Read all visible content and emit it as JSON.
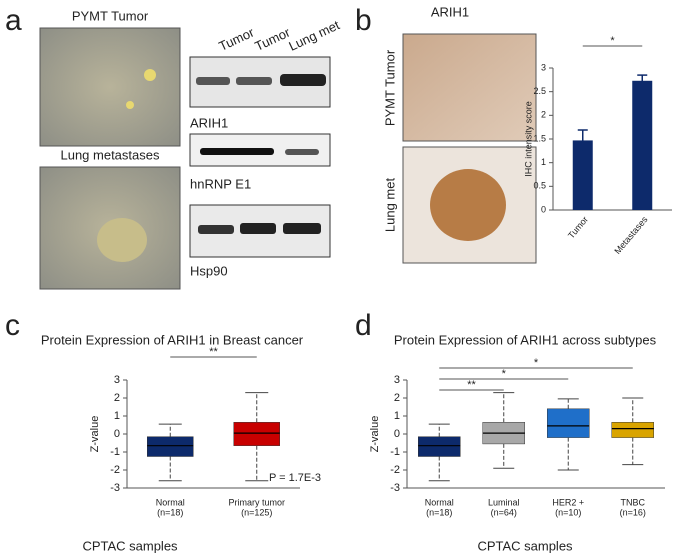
{
  "panel_labels": [
    "a",
    "b",
    "c",
    "d"
  ],
  "panel_a": {
    "image_labels": [
      "PYMT Tumor",
      "Lung metastases"
    ],
    "blot_lanes": [
      "Tumor",
      "Tumor",
      "Lung met"
    ],
    "blot_labels": [
      "ARIH1",
      "hnRNP E1",
      "Hsp90"
    ]
  },
  "panel_b": {
    "title": "ARIH1",
    "image_labels": [
      "PYMT Tumor",
      "Lung met"
    ]
  },
  "chart_data": [
    {
      "type": "bar",
      "categories": [
        "Tumor",
        "Metastases"
      ],
      "values": [
        1.47,
        2.73
      ],
      "errors": [
        0.22,
        0.12
      ],
      "color": "#0d2a6b",
      "ylabel": "IHC intensity score",
      "ylim": [
        0,
        3
      ],
      "yticks": [
        0,
        0.5,
        1,
        1.5,
        2,
        2.5,
        3
      ],
      "significance": [
        {
          "pair": [
            "Tumor",
            "Metastases"
          ],
          "label": "*"
        }
      ]
    },
    {
      "type": "box",
      "title": "Protein Expression of ARIH1 in Breast cancer",
      "categories": [
        "Normal",
        "Primary tumor"
      ],
      "sample_sizes": [
        "(n=18)",
        "(n=125)"
      ],
      "boxes": [
        {
          "min": -2.6,
          "q1": -1.25,
          "median": -0.65,
          "q3": -0.15,
          "max": 0.55
        },
        {
          "min": -2.6,
          "q1": -0.65,
          "median": 0.05,
          "q3": 0.65,
          "max": 2.3
        }
      ],
      "colors": [
        "#0d2a6b",
        "#c80000"
      ],
      "ylabel": "Z-value",
      "xlabel": "CPTAC samples",
      "annotation": "P = 1.7E-3",
      "ylim": [
        -3,
        3
      ],
      "yticks": [
        -3,
        -2,
        -1,
        0,
        1,
        2,
        3
      ],
      "significance": [
        {
          "pair": [
            "Normal",
            "Primary tumor"
          ],
          "label": "**"
        }
      ]
    },
    {
      "type": "box",
      "title": "Protein Expression of ARIH1 across subtypes",
      "categories": [
        "Normal",
        "Luminal",
        "HER2 +",
        "TNBC"
      ],
      "sample_sizes": [
        "(n=18)",
        "(n=64)",
        "(n=10)",
        "(n=16)"
      ],
      "boxes": [
        {
          "min": -2.6,
          "q1": -1.25,
          "median": -0.65,
          "q3": -0.15,
          "max": 0.55
        },
        {
          "min": -1.9,
          "q1": -0.55,
          "median": 0.05,
          "q3": 0.65,
          "max": 2.3
        },
        {
          "min": -2.0,
          "q1": -0.2,
          "median": 0.45,
          "q3": 1.4,
          "max": 1.95
        },
        {
          "min": -1.7,
          "q1": -0.2,
          "median": 0.3,
          "q3": 0.65,
          "max": 2.0
        }
      ],
      "colors": [
        "#0d2a6b",
        "#a8a8a8",
        "#1f6fc9",
        "#d9a400"
      ],
      "ylabel": "Z-value",
      "xlabel": "CPTAC samples",
      "ylim": [
        -3,
        3
      ],
      "yticks": [
        -3,
        -2,
        -1,
        0,
        1,
        2,
        3
      ],
      "significance": [
        {
          "pair": [
            "Normal",
            "Luminal"
          ],
          "label": "**"
        },
        {
          "pair": [
            "Normal",
            "HER2 +"
          ],
          "label": "*"
        },
        {
          "pair": [
            "Normal",
            "TNBC"
          ],
          "label": "*"
        }
      ]
    }
  ]
}
